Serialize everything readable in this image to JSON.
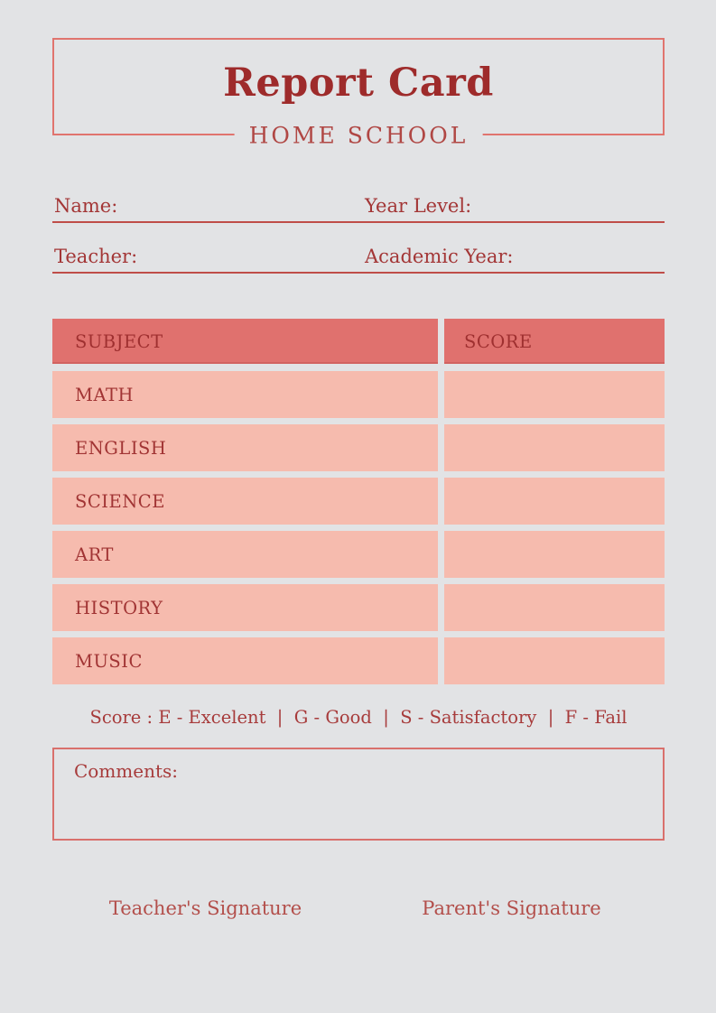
{
  "header": {
    "title": "Report Card",
    "subtitle": "HOME SCHOOL"
  },
  "fields": {
    "name_label": "Name:",
    "name_value": "",
    "year_level_label": "Year Level:",
    "year_level_value": "",
    "teacher_label": "Teacher:",
    "teacher_value": "",
    "academic_year_label": "Academic Year:",
    "academic_year_value": ""
  },
  "table": {
    "headers": [
      "SUBJECT",
      "SCORE"
    ],
    "rows": [
      {
        "subject": "MATH",
        "score": ""
      },
      {
        "subject": "ENGLISH",
        "score": ""
      },
      {
        "subject": "SCIENCE",
        "score": ""
      },
      {
        "subject": "ART",
        "score": ""
      },
      {
        "subject": "HISTORY",
        "score": ""
      },
      {
        "subject": "MUSIC",
        "score": ""
      }
    ]
  },
  "legend": {
    "text": "Score : E - Excelent  |  G - Good  |  S - Satisfactory  |  F - Fail"
  },
  "comments": {
    "label": "Comments:",
    "value": ""
  },
  "signatures": {
    "teacher": "Teacher's Signature",
    "parent": "Parent's Signature"
  },
  "colors": {
    "background": "#e2e3e5",
    "accent_border": "#e0746e",
    "title_red": "#9e2b2b",
    "subtitle_red": "#b04744",
    "field_label_red": "#a33636",
    "field_line_red": "#bf4d48",
    "table_header_bg": "#e0716e",
    "table_header_text": "#9f3030",
    "table_row_bg": "#f6bbae",
    "table_row_text": "#a13434",
    "legend_text": "#a73b3b",
    "comments_border": "#d9706c",
    "signature_red": "#b34f4b"
  }
}
